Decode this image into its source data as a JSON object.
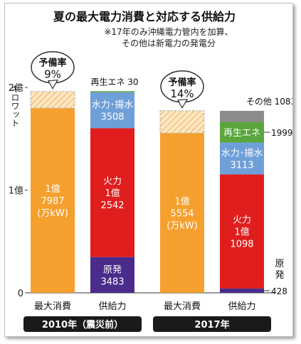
{
  "chart_data": {
    "type": "bar",
    "title": "夏の最大電力消費と対応する供給力",
    "notes": [
      "※17年のみ沖縄電力管内を加算、",
      "その他は新電力の発電分"
    ],
    "ylabel": "キロワット",
    "yticks": [
      {
        "value": 0,
        "label": "0"
      },
      {
        "value": 10000,
        "label": "1億"
      },
      {
        "value": 20000,
        "label": "2億"
      }
    ],
    "ylim": [
      0,
      20000
    ],
    "value_unit": "万kW",
    "groups": [
      {
        "label": "2010年（震災前）",
        "bars": [
          {
            "category": "最大消費",
            "segments": [
              {
                "name": "最大消費",
                "value": 17987,
                "color": "#f5a02e",
                "label_lines": [
                  "1億",
                  "7987",
                  "(万kW)"
                ],
                "label_color": "#ffffff"
              }
            ],
            "reserve": {
              "label_lines": [
                "予備率",
                "9%"
              ],
              "value_pct": 9
            }
          },
          {
            "category": "供給力",
            "segments": [
              {
                "name": "原発",
                "value": 3483,
                "color": "#4b2c8c",
                "label_lines": [
                  "原発",
                  "3483"
                ],
                "label_color": "#ffffff"
              },
              {
                "name": "火力",
                "value": 12542,
                "color": "#e01e1e",
                "label_lines": [
                  "火力",
                  "1億",
                  "2542"
                ],
                "label_color": "#ffffff"
              },
              {
                "name": "水力・揚水",
                "value": 3508,
                "color": "#6f9fd8",
                "label_lines": [
                  "水力･揚水",
                  "3508"
                ],
                "label_color": "#ffffff"
              },
              {
                "name": "再生エネ",
                "value": 30,
                "color": "#5aa63c",
                "outside_label": "再生エネ 30"
              }
            ]
          }
        ]
      },
      {
        "label": "2017年",
        "bars": [
          {
            "category": "最大消費",
            "segments": [
              {
                "name": "最大消費",
                "value": 15554,
                "color": "#f5a02e",
                "label_lines": [
                  "1億",
                  "5554",
                  "(万kW)"
                ],
                "label_color": "#ffffff"
              }
            ],
            "reserve": {
              "label_lines": [
                "予備率",
                "14%"
              ],
              "value_pct": 14
            }
          },
          {
            "category": "供給力",
            "segments": [
              {
                "name": "原発",
                "value": 428,
                "color": "#4b2c8c",
                "outside_label": "428",
                "side_label": "原発"
              },
              {
                "name": "火力",
                "value": 11098,
                "color": "#e01e1e",
                "label_lines": [
                  "火力",
                  "1億",
                  "1098"
                ],
                "label_color": "#ffffff"
              },
              {
                "name": "水力・揚水",
                "value": 3113,
                "color": "#6f9fd8",
                "label_lines": [
                  "水力･揚水",
                  "3113"
                ],
                "label_color": "#ffffff"
              },
              {
                "name": "再生エネ",
                "value": 1999,
                "color": "#5aa63c",
                "label_lines": [
                  "再生エネ"
                ],
                "label_color": "#ffffff",
                "outside_label": "1999"
              },
              {
                "name": "その他",
                "value": 1083,
                "color": "#8c8c8c",
                "outside_label": "その他 1083"
              }
            ]
          }
        ]
      }
    ],
    "grid": false,
    "legend": "none"
  }
}
